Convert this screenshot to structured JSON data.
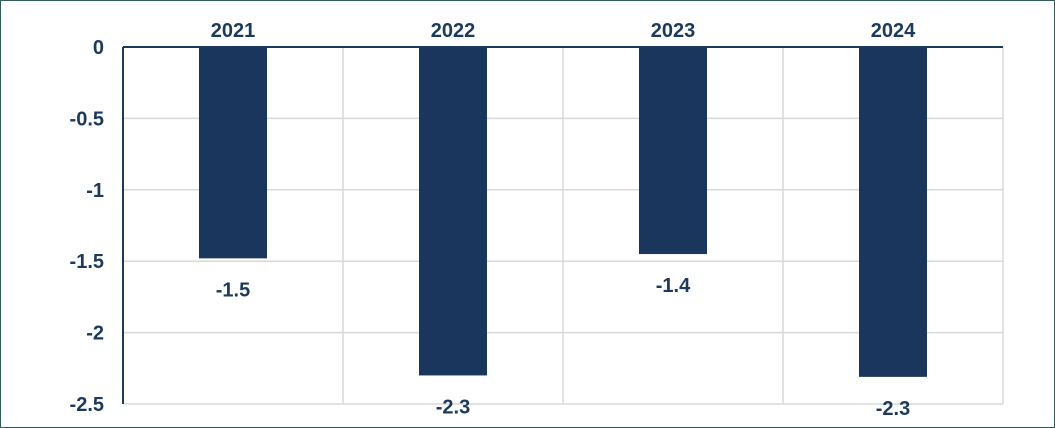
{
  "colors": {
    "bar": "#1b365c",
    "axis": "#1b3a5c",
    "grid": "#d9d9d9",
    "text": "#1b3a5c"
  },
  "chart_data": {
    "type": "bar",
    "title": "",
    "xlabel": "",
    "ylabel": "",
    "categories": [
      "2021",
      "2022",
      "2023",
      "2024"
    ],
    "values": [
      -1.48,
      -2.3,
      -1.45,
      -2.31
    ],
    "data_labels": [
      "-1.5",
      "-2.3",
      "-1.4",
      "-2.3"
    ],
    "ylim": [
      -2.5,
      0
    ],
    "y_ticks": [
      0,
      -0.5,
      -1,
      -1.5,
      -2,
      -2.5
    ],
    "y_tick_labels": [
      "0",
      "-0.5",
      "-1",
      "-1.5",
      "-2",
      "-2.5"
    ],
    "x_axis_position": "top",
    "grid": true,
    "legend": "none"
  }
}
